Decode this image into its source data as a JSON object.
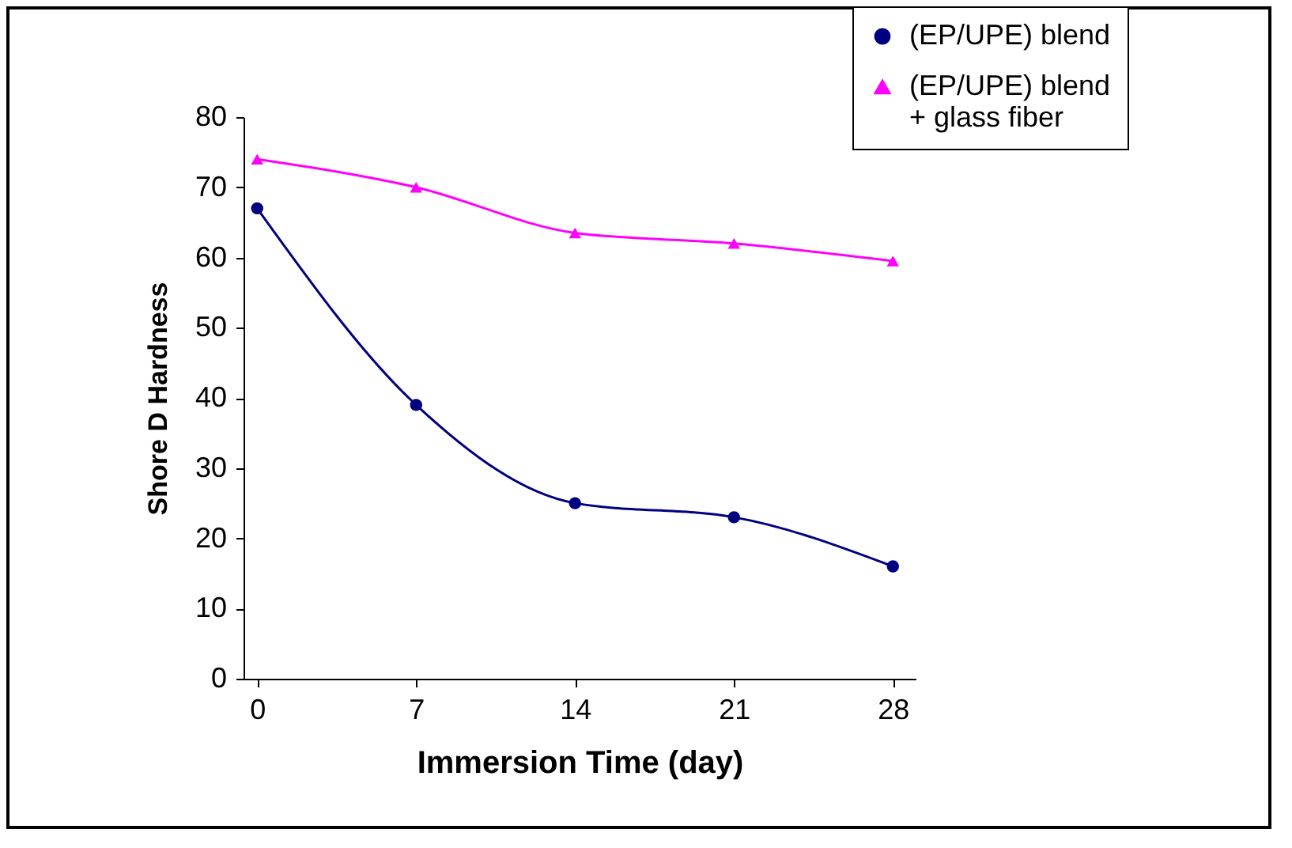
{
  "chart_data": {
    "type": "line",
    "xlabel": "Immersion Time (day)",
    "ylabel": "Shore D Hardness",
    "x": [
      0,
      7,
      14,
      21,
      28
    ],
    "series": [
      {
        "name": "(EP/UPE) blend",
        "color": "#000080",
        "marker": "circle",
        "values": [
          67,
          39,
          25,
          23,
          16
        ]
      },
      {
        "name": "(EP/UPE) blend\n+ glass fiber",
        "color": "#ff00ff",
        "marker": "triangle",
        "values": [
          74,
          70,
          63.5,
          62,
          59.5
        ]
      }
    ],
    "xlim": [
      -0.6,
      29
    ],
    "xticks": [
      0,
      7,
      14,
      21,
      28
    ],
    "ylim": [
      0,
      80
    ],
    "yticks": [
      0,
      10,
      20,
      30,
      40,
      50,
      60,
      70,
      80
    ],
    "grid": false,
    "legend": "top right",
    "line_style": "solid"
  }
}
